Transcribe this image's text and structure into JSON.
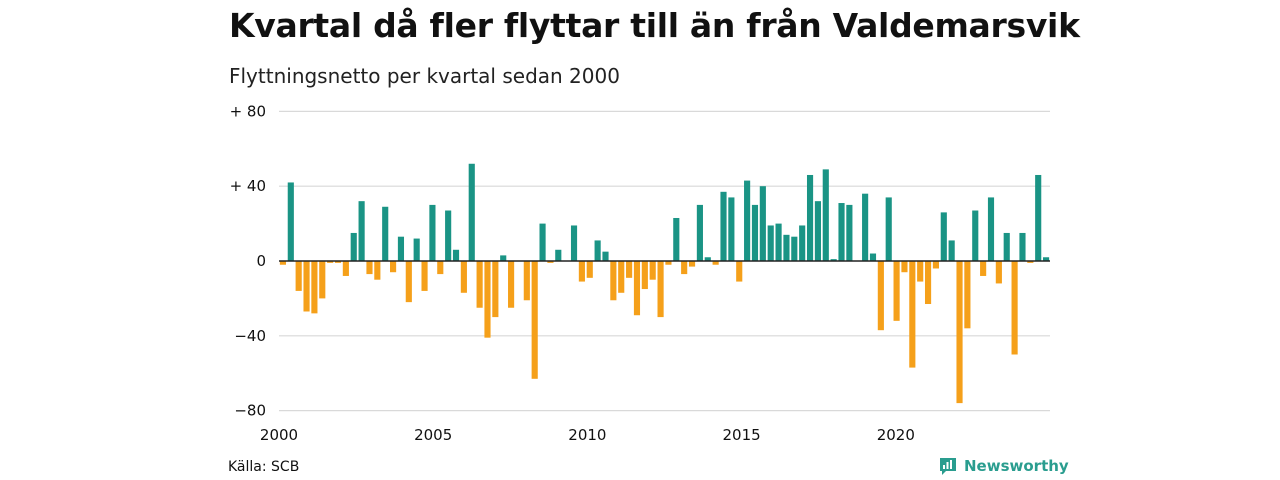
{
  "title": "Kvartal då fler flyttar till än från Valdemarsvik",
  "subtitle": "Flyttningsnetto per kvartal sedan 2000",
  "source": "Källa: SCB",
  "brand": "Newsworthy",
  "colors": {
    "positive": "#1a9485",
    "negative": "#f5a01a",
    "grid": "#d9d9d9",
    "brand": "#2a9d8f"
  },
  "chart_data": {
    "type": "bar",
    "title": "Kvartal då fler flyttar till än från Valdemarsvik",
    "subtitle": "Flyttningsnetto per kvartal sedan 2000",
    "x_start_year": 2000,
    "x_end_year": 2024.75,
    "periods_per_year": 4,
    "ylim": [
      -85,
      80
    ],
    "y_ticks": [
      80,
      40,
      0,
      -40,
      -80
    ],
    "y_tick_labels": [
      "+ 80",
      "+ 40",
      "0",
      "−40",
      "−80"
    ],
    "x_ticks": [
      2000,
      2005,
      2010,
      2015,
      2020
    ],
    "x_tick_labels": [
      "2000",
      "2005",
      "2010",
      "2015",
      "2020"
    ],
    "grid": true,
    "values": [
      -2,
      42,
      -16,
      -27,
      -28,
      -20,
      -1,
      -1,
      -8,
      15,
      32,
      -7,
      -10,
      29,
      -6,
      13,
      -22,
      12,
      -16,
      30,
      -7,
      27,
      6,
      -17,
      52,
      -25,
      -41,
      -30,
      3,
      -25,
      0,
      -21,
      -63,
      20,
      -1,
      6,
      0,
      19,
      -11,
      -9,
      11,
      5,
      -21,
      -17,
      -9,
      -29,
      -15,
      -10,
      -30,
      -2,
      23,
      -7,
      -3,
      30,
      2,
      -2,
      37,
      34,
      -11,
      43,
      30,
      40,
      19,
      20,
      14,
      13,
      19,
      46,
      32,
      49,
      1,
      31,
      30,
      0,
      36,
      4,
      -37,
      34,
      -32,
      -6,
      -57,
      -11,
      -23,
      -4,
      26,
      11,
      -76,
      -36,
      27,
      -8,
      34,
      -12,
      15,
      -50,
      15,
      -1,
      46,
      2
    ]
  }
}
